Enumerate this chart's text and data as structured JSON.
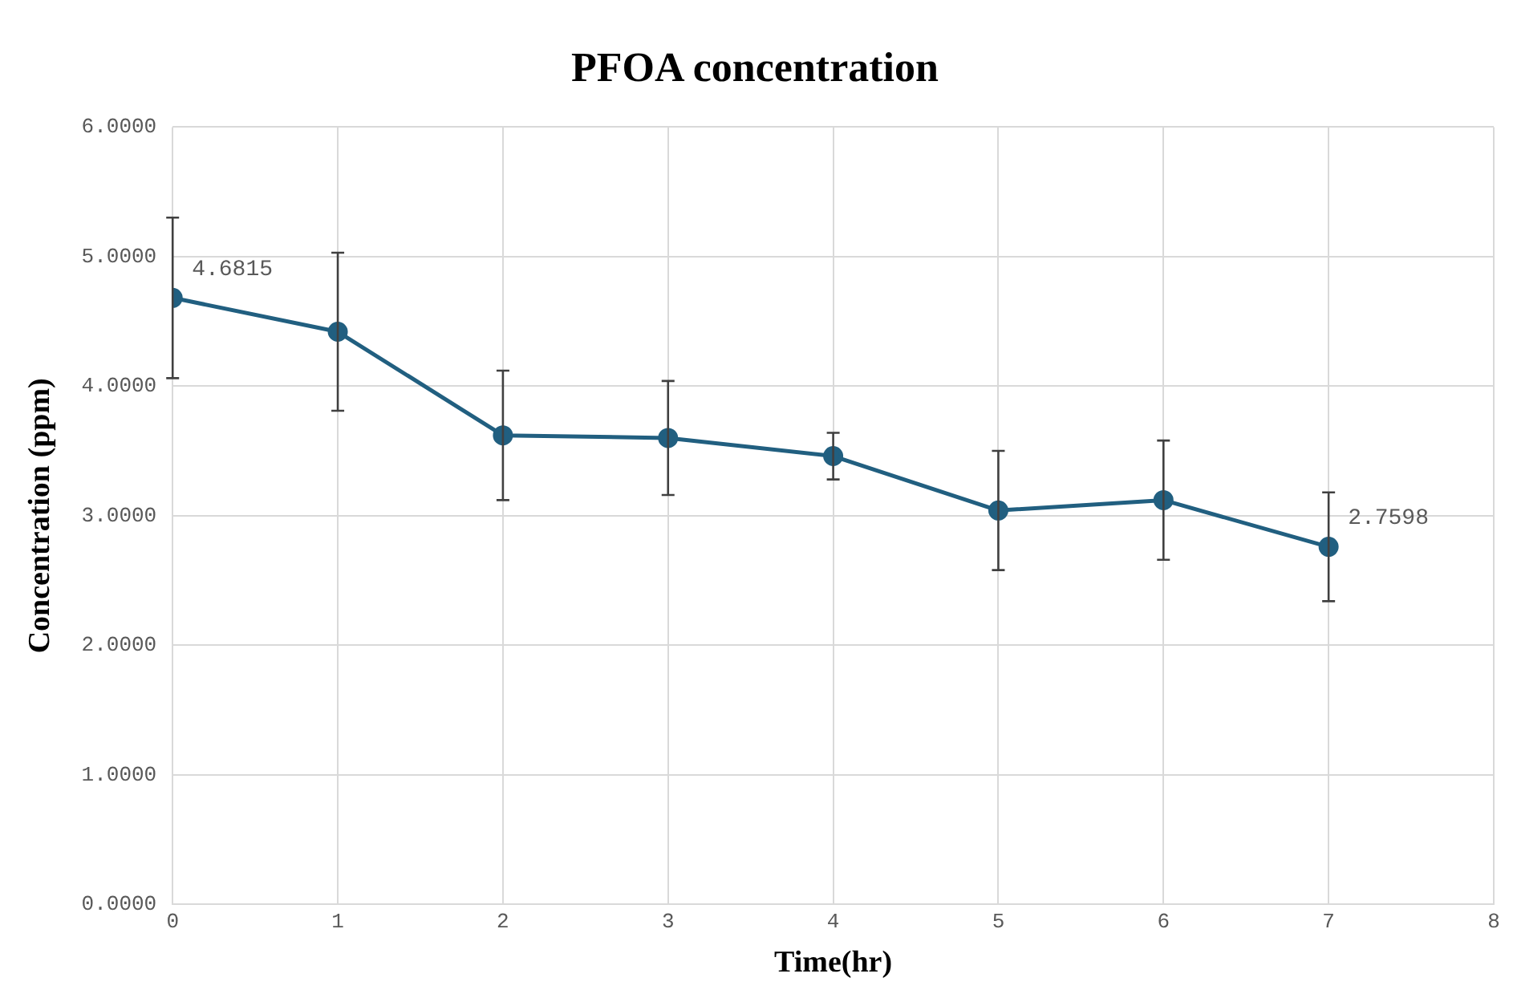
{
  "chart_data": {
    "type": "line",
    "title": "PFOA concentration",
    "xlabel": "Time(hr)",
    "ylabel": "Concentration (ppm)",
    "x": [
      0,
      1,
      2,
      3,
      4,
      5,
      6,
      7
    ],
    "series": [
      {
        "color": "#215f80",
        "values": [
          4.6815,
          4.42,
          3.62,
          3.6,
          3.46,
          3.04,
          3.12,
          2.7598
        ],
        "errors": [
          0.62,
          0.61,
          0.5,
          0.44,
          0.18,
          0.46,
          0.46,
          0.42
        ],
        "value_labels": [
          "4.6815",
          null,
          null,
          null,
          null,
          null,
          null,
          "2.7598"
        ]
      }
    ],
    "xlim": [
      0,
      8
    ],
    "xticks": [
      0,
      1,
      2,
      3,
      4,
      5,
      6,
      7,
      8
    ],
    "ylim": [
      0,
      6
    ],
    "yticks": [
      {
        "value": 0,
        "label": "0.0000"
      },
      {
        "value": 1,
        "label": "1.0000"
      },
      {
        "value": 2,
        "label": "2.0000"
      },
      {
        "value": 3,
        "label": "3.0000"
      },
      {
        "value": 4,
        "label": "4.0000"
      },
      {
        "value": 5,
        "label": "5.0000"
      },
      {
        "value": 6,
        "label": "6.0000"
      }
    ],
    "grid": true,
    "marker": "circle",
    "line_style": "solid"
  }
}
